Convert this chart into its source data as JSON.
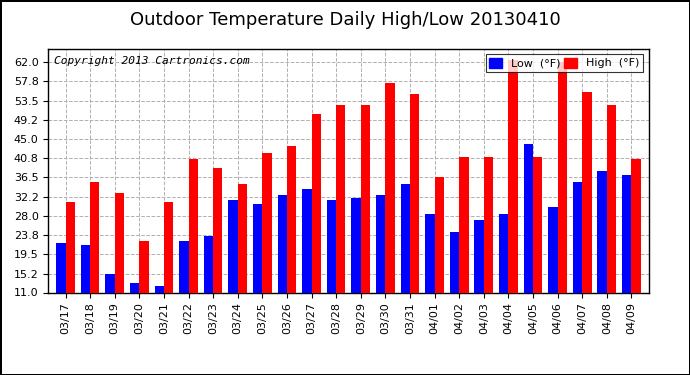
{
  "title": "Outdoor Temperature Daily High/Low 20130410",
  "copyright": "Copyright 2013 Cartronics.com",
  "dates": [
    "03/17",
    "03/18",
    "03/19",
    "03/20",
    "03/21",
    "03/22",
    "03/23",
    "03/24",
    "03/25",
    "03/26",
    "03/27",
    "03/28",
    "03/29",
    "03/30",
    "03/31",
    "04/01",
    "04/02",
    "04/03",
    "04/04",
    "04/05",
    "04/06",
    "04/07",
    "04/08",
    "04/09"
  ],
  "high": [
    31.0,
    35.5,
    33.0,
    22.5,
    31.0,
    40.5,
    38.5,
    35.0,
    42.0,
    43.5,
    50.5,
    52.5,
    52.5,
    57.5,
    55.0,
    36.5,
    41.0,
    41.0,
    62.5,
    41.0,
    62.0,
    55.5,
    52.5,
    40.5
  ],
  "low": [
    22.0,
    21.5,
    15.0,
    13.0,
    12.5,
    22.5,
    23.5,
    31.5,
    30.5,
    32.5,
    34.0,
    31.5,
    32.0,
    32.5,
    35.0,
    28.5,
    24.5,
    27.0,
    28.5,
    44.0,
    30.0,
    35.5,
    38.0,
    37.0
  ],
  "high_color": "#ff0000",
  "low_color": "#0000ff",
  "bg_color": "#ffffff",
  "grid_color": "#b0b0b0",
  "border_color": "#000000",
  "ymin": 11.0,
  "ymax": 65.0,
  "yticks": [
    11.0,
    15.2,
    19.5,
    23.8,
    28.0,
    32.2,
    36.5,
    40.8,
    45.0,
    49.2,
    53.5,
    57.8,
    62.0
  ],
  "title_fontsize": 13,
  "copyright_fontsize": 8,
  "legend_fontsize": 8,
  "tick_fontsize": 8,
  "bar_width": 0.38
}
